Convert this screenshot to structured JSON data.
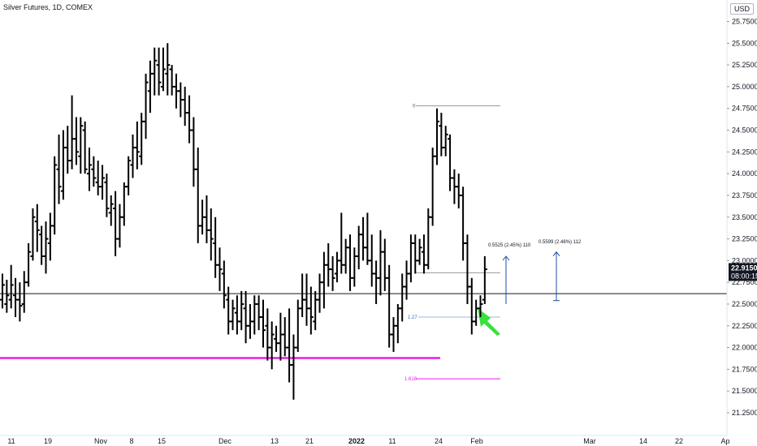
{
  "header": {
    "title": "Silver Futures, 1D, COMEX",
    "currency": "USD"
  },
  "price_axis": {
    "ticks": [
      "25.7500",
      "25.5000",
      "25.2500",
      "25.0000",
      "24.7500",
      "24.5000",
      "24.2500",
      "24.0000",
      "23.7500",
      "23.5000",
      "23.2500",
      "23.0000",
      "22.7500",
      "22.5000",
      "22.2500",
      "22.0000",
      "21.7500",
      "21.5000",
      "21.2500"
    ],
    "last_price": "22.9150",
    "countdown": "08:00:15"
  },
  "time_axis": {
    "labels": [
      "11",
      "19",
      "Nov",
      "8",
      "15",
      "Dec",
      "13",
      "21",
      "2022",
      "11",
      "24",
      "Feb",
      "Mar",
      "14",
      "22",
      "Ap"
    ]
  },
  "annotations": {
    "fib_0": "0",
    "fib_127": "1.27",
    "fib_1618": "1.618",
    "measure_1": "0.5525 (2.45%) 110",
    "measure_2": "0.5599 (2.48%) 112"
  },
  "colors": {
    "bars": "#000000",
    "magenta": "#e91ee3",
    "blue": "#1f4ea3",
    "green": "#38e13c",
    "grid": "#9598a1"
  },
  "chart_data": {
    "type": "bar",
    "title": "Silver Futures, 1D, COMEX",
    "ylabel": "USD",
    "ylim": [
      21.15,
      25.9
    ],
    "series": [
      {
        "values": [
          [
            22.55,
            22.85,
            22.45,
            22.72
          ],
          [
            22.5,
            22.78,
            22.4,
            22.6
          ],
          [
            22.55,
            22.95,
            22.45,
            22.72
          ],
          [
            22.6,
            22.8,
            22.35,
            22.55
          ],
          [
            22.55,
            22.75,
            22.3,
            22.48
          ],
          [
            22.5,
            22.88,
            22.4,
            22.75
          ],
          [
            22.75,
            23.2,
            22.7,
            23.1
          ],
          [
            23.05,
            23.6,
            23.0,
            23.5
          ],
          [
            23.45,
            23.65,
            23.1,
            23.35
          ],
          [
            23.3,
            23.4,
            22.95,
            23.05
          ],
          [
            23.05,
            23.45,
            22.85,
            23.25
          ],
          [
            23.2,
            23.55,
            23.0,
            23.4
          ],
          [
            23.4,
            24.2,
            23.3,
            24.1
          ],
          [
            24.05,
            24.45,
            23.65,
            23.85
          ],
          [
            23.8,
            24.5,
            23.7,
            24.3
          ],
          [
            24.3,
            24.55,
            24.0,
            24.15
          ],
          [
            24.15,
            24.9,
            24.05,
            24.4
          ],
          [
            24.4,
            24.65,
            24.1,
            24.25
          ],
          [
            24.2,
            24.65,
            24.0,
            24.55
          ],
          [
            24.5,
            24.6,
            24.0,
            24.05
          ],
          [
            24.0,
            24.3,
            23.8,
            24.1
          ],
          [
            24.05,
            24.2,
            23.85,
            23.95
          ],
          [
            23.9,
            24.15,
            23.75,
            23.85
          ],
          [
            23.85,
            24.1,
            23.7,
            23.95
          ],
          [
            23.9,
            24.0,
            23.5,
            23.6
          ],
          [
            23.55,
            23.75,
            23.4,
            23.65
          ],
          [
            23.6,
            23.8,
            23.05,
            23.25
          ],
          [
            23.25,
            23.65,
            23.15,
            23.5
          ],
          [
            23.5,
            23.9,
            23.4,
            23.85
          ],
          [
            23.85,
            24.2,
            23.75,
            24.15
          ],
          [
            24.1,
            24.45,
            23.95,
            24.3
          ],
          [
            24.3,
            24.6,
            24.05,
            24.25
          ],
          [
            24.2,
            24.7,
            24.1,
            24.6
          ],
          [
            24.6,
            25.15,
            24.4,
            25.05
          ],
          [
            24.95,
            25.3,
            24.7,
            25.15
          ],
          [
            25.15,
            25.45,
            24.9,
            25.3
          ],
          [
            25.25,
            25.45,
            24.9,
            25.05
          ],
          [
            25.0,
            25.45,
            24.95,
            25.2
          ],
          [
            25.15,
            25.5,
            24.9,
            25.25
          ],
          [
            25.2,
            25.25,
            24.9,
            25.0
          ],
          [
            25.0,
            25.15,
            24.75,
            24.95
          ],
          [
            24.95,
            25.05,
            24.65,
            24.85
          ],
          [
            24.85,
            25.0,
            24.55,
            24.7
          ],
          [
            24.7,
            24.9,
            24.35,
            24.5
          ],
          [
            24.5,
            24.65,
            23.85,
            24.05
          ],
          [
            24.05,
            24.3,
            23.2,
            23.4
          ],
          [
            23.4,
            23.7,
            23.3,
            23.5
          ],
          [
            23.5,
            23.75,
            23.2,
            23.35
          ],
          [
            23.35,
            23.6,
            23.0,
            23.25
          ],
          [
            23.2,
            23.5,
            22.8,
            22.95
          ],
          [
            22.95,
            23.15,
            22.65,
            22.9
          ],
          [
            22.85,
            23.0,
            22.45,
            22.6
          ],
          [
            22.55,
            22.7,
            22.15,
            22.3
          ],
          [
            22.3,
            22.55,
            22.2,
            22.45
          ],
          [
            22.4,
            22.6,
            22.15,
            22.3
          ],
          [
            22.3,
            22.65,
            22.2,
            22.5
          ],
          [
            22.45,
            22.65,
            22.05,
            22.25
          ],
          [
            22.25,
            22.5,
            22.1,
            22.3
          ],
          [
            22.3,
            22.6,
            22.15,
            22.5
          ],
          [
            22.5,
            22.6,
            22.2,
            22.35
          ],
          [
            22.35,
            22.55,
            22.0,
            22.2
          ],
          [
            22.25,
            22.45,
            21.85,
            22.0
          ],
          [
            22.0,
            22.3,
            21.75,
            22.15
          ],
          [
            22.1,
            22.25,
            21.95,
            22.05
          ],
          [
            22.05,
            22.4,
            21.85,
            22.15
          ],
          [
            22.15,
            22.35,
            21.9,
            22.0
          ],
          [
            22.0,
            22.45,
            21.6,
            21.8
          ],
          [
            21.8,
            22.15,
            21.4,
            22.0
          ],
          [
            22.0,
            22.55,
            21.95,
            22.45
          ],
          [
            22.45,
            22.85,
            22.35,
            22.55
          ],
          [
            22.55,
            22.85,
            22.25,
            22.45
          ],
          [
            22.45,
            22.7,
            22.15,
            22.35
          ],
          [
            22.3,
            22.65,
            22.2,
            22.55
          ],
          [
            22.55,
            22.85,
            22.4,
            22.75
          ],
          [
            22.75,
            23.1,
            22.45,
            22.95
          ],
          [
            22.95,
            23.2,
            22.7,
            22.9
          ],
          [
            22.9,
            23.05,
            22.65,
            22.8
          ],
          [
            22.85,
            23.1,
            22.75,
            23.0
          ],
          [
            23.0,
            23.55,
            22.85,
            22.95
          ],
          [
            22.95,
            23.25,
            22.85,
            23.15
          ],
          [
            23.15,
            23.3,
            22.65,
            22.8
          ],
          [
            22.8,
            23.15,
            22.7,
            23.05
          ],
          [
            23.05,
            23.4,
            22.9,
            23.3
          ],
          [
            23.3,
            23.5,
            23.0,
            23.15
          ],
          [
            23.15,
            23.55,
            22.95,
            23.0
          ],
          [
            23.0,
            23.3,
            22.7,
            22.85
          ],
          [
            22.85,
            23.0,
            22.5,
            22.8
          ],
          [
            22.8,
            23.35,
            22.6,
            23.1
          ],
          [
            23.1,
            23.25,
            22.65,
            22.8
          ],
          [
            22.8,
            22.95,
            22.0,
            22.15
          ],
          [
            22.15,
            22.35,
            21.95,
            22.25
          ],
          [
            22.25,
            22.5,
            22.05,
            22.45
          ],
          [
            22.45,
            22.85,
            22.3,
            22.7
          ],
          [
            22.7,
            23.0,
            22.55,
            22.85
          ],
          [
            22.85,
            23.3,
            22.75,
            23.2
          ],
          [
            23.2,
            23.3,
            22.85,
            23.0
          ],
          [
            23.0,
            23.25,
            22.95,
            23.15
          ],
          [
            23.1,
            23.3,
            22.85,
            22.95
          ],
          [
            22.95,
            23.6,
            22.9,
            23.5
          ],
          [
            23.5,
            24.3,
            23.4,
            24.2
          ],
          [
            24.2,
            24.75,
            24.1,
            24.6
          ],
          [
            24.55,
            24.7,
            24.2,
            24.3
          ],
          [
            24.3,
            24.55,
            24.2,
            24.45
          ],
          [
            24.4,
            24.45,
            23.8,
            23.95
          ],
          [
            23.95,
            24.05,
            23.65,
            23.85
          ],
          [
            23.85,
            24.0,
            23.6,
            23.75
          ],
          [
            23.75,
            23.85,
            23.0,
            23.2
          ],
          [
            23.2,
            23.3,
            22.5,
            22.7
          ],
          [
            22.7,
            22.8,
            22.15,
            22.3
          ],
          [
            22.3,
            22.55,
            22.25,
            22.45
          ],
          [
            22.45,
            22.6,
            22.35,
            22.5
          ],
          [
            22.55,
            23.05,
            22.5,
            22.9
          ]
        ]
      }
    ],
    "price_line": 22.62,
    "support_line": 21.88,
    "fib_levels": {
      "0": 24.78,
      "1": 22.86,
      "1.27": 22.35,
      "1.618": 21.64
    },
    "measures": [
      {
        "label": "0.5525 (2.45%) 110",
        "from": 22.5,
        "to": 23.05
      },
      {
        "label": "0.5599 (2.48%) 112",
        "from": 22.54,
        "to": 23.1
      }
    ]
  }
}
